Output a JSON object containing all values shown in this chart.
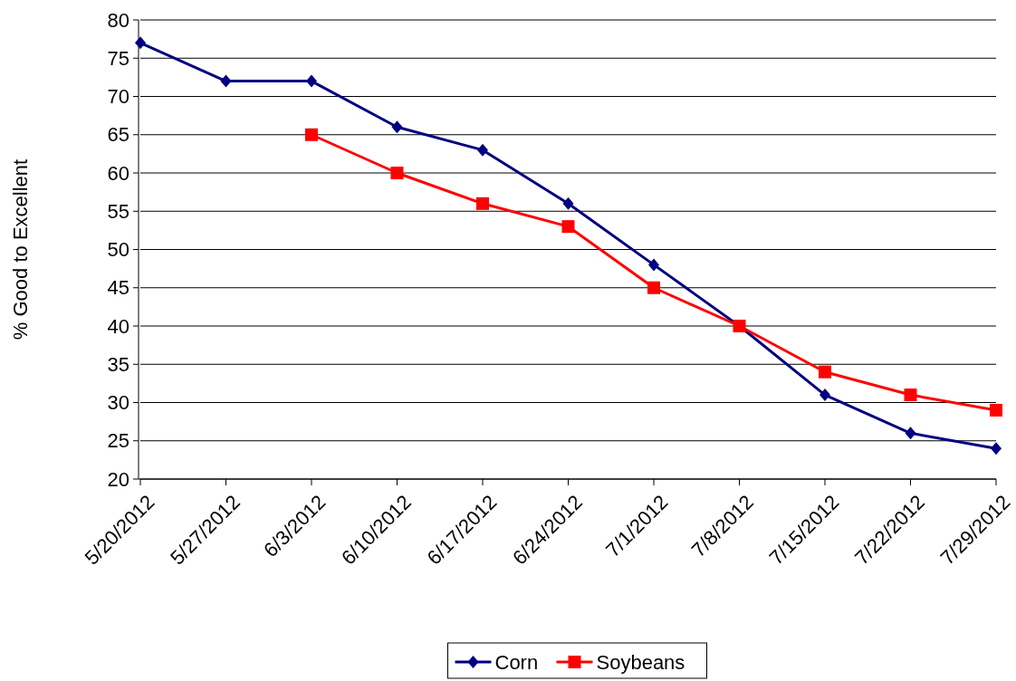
{
  "chart_data": {
    "type": "line",
    "ylabel": "% Good to Excellent",
    "categories": [
      "5/20/2012",
      "5/27/2012",
      "6/3/2012",
      "6/10/2012",
      "6/17/2012",
      "6/24/2012",
      "7/1/2012",
      "7/8/2012",
      "7/15/2012",
      "7/22/2012",
      "7/29/2012"
    ],
    "series": [
      {
        "name": "Corn",
        "color": "#000080",
        "marker": "diamond",
        "values": [
          77,
          72,
          72,
          66,
          63,
          56,
          48,
          40,
          31,
          26,
          24
        ]
      },
      {
        "name": "Soybeans",
        "color": "#ff0000",
        "marker": "square",
        "values": [
          null,
          null,
          65,
          60,
          56,
          53,
          45,
          40,
          34,
          31,
          29
        ]
      }
    ],
    "ylim": [
      20,
      80
    ],
    "yticks": [
      20,
      25,
      30,
      35,
      40,
      45,
      50,
      55,
      60,
      65,
      70,
      75,
      80
    ],
    "grid": "y",
    "legend": "bottom",
    "line_style": "solid"
  }
}
